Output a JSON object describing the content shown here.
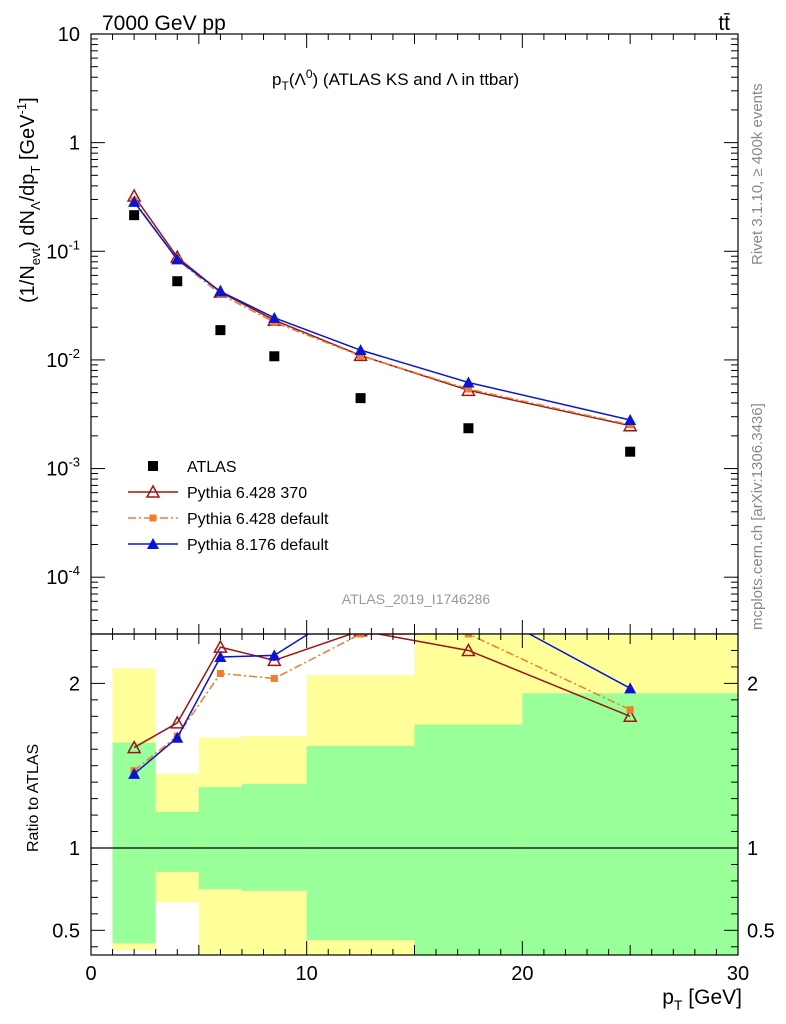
{
  "header": {
    "left": "7000 GeV pp",
    "right": "tt̄"
  },
  "side_labels": {
    "rivet": "Rivet 3.1.10, ≥ 400k events",
    "mcplots": "mcplots.cern.ch [arXiv:1306.3436]"
  },
  "chart_data": [
    {
      "type": "scatter",
      "title": "p_T(Λ⁰) (ATLAS KS and Λ in ttbar)",
      "title_parts": {
        "p": "p",
        "sub_t": "T",
        "paren_open": "(Λ",
        "sup_0": "0",
        "rest": ") (ATLAS KS and Λ in ttbar)"
      },
      "ylabel": "(1/N_evt) dN_Λ/dp_T [GeV⁻¹]",
      "ylabel_parts": {
        "a": "(1/N",
        "sub_evt": "evt",
        "b": ") dN",
        "sub_lambda": "Λ",
        "c": "/dp",
        "sub_t": "T",
        "d": " [GeV",
        "sup": "-1",
        "e": "]"
      },
      "y_scale": "log",
      "ylim": [
        3e-05,
        10
      ],
      "xlim": [
        0,
        30
      ],
      "y_tick_labels": [
        {
          "base": "10",
          "exp": "-4",
          "value": 0.0001
        },
        {
          "base": "10",
          "exp": "-3",
          "value": 0.001
        },
        {
          "base": "10",
          "exp": "-2",
          "value": 0.01
        },
        {
          "base": "10",
          "exp": "-1",
          "value": 0.1
        },
        {
          "base": "1",
          "exp": "",
          "value": 1
        },
        {
          "base": "10",
          "exp": "",
          "value": 10
        }
      ],
      "watermark": "ATLAS_2019_I1746286",
      "legend_position": "bottom-left",
      "series": [
        {
          "name": "ATLAS",
          "color": "#000000",
          "marker": "square",
          "x": [
            2,
            4,
            6,
            8.5,
            12.5,
            17.5,
            25
          ],
          "y": [
            0.215,
            0.053,
            0.0188,
            0.0108,
            0.00445,
            0.00235,
            0.00143
          ]
        },
        {
          "name": "Pythia 6.428 370",
          "color": "#9c1616",
          "marker": "open-triangle",
          "line": "solid",
          "x": [
            2,
            4,
            6,
            8.5,
            12.5,
            17.5,
            25
          ],
          "y": [
            0.323,
            0.0883,
            0.0421,
            0.0232,
            0.011,
            0.00525,
            0.00248
          ]
        },
        {
          "name": "Pythia 6.428 default",
          "color": "#f47b28",
          "marker": "square-small",
          "line": "dashdot",
          "x": [
            2,
            4,
            6,
            8.5,
            12.5,
            17.5,
            25
          ],
          "y": [
            0.292,
            0.0839,
            0.0402,
            0.0222,
            0.0109,
            0.0054,
            0.00253
          ]
        },
        {
          "name": "Pythia 8.176 default",
          "color": "#0a14d8",
          "marker": "triangle",
          "line": "solid",
          "x": [
            2,
            4,
            6,
            8.5,
            12.5,
            17.5,
            25
          ],
          "y": [
            0.285,
            0.0842,
            0.0427,
            0.0244,
            0.0123,
            0.0062,
            0.0028
          ]
        }
      ]
    },
    {
      "type": "line",
      "ylabel": "Ratio to ATLAS",
      "xlabel": "p_T [GeV]",
      "xlabel_parts": {
        "p": "p",
        "sub_t": "T",
        "unit": " [GeV]"
      },
      "xlim": [
        0,
        30
      ],
      "ylim": [
        0.35,
        2.3
      ],
      "x_tick_labels": [
        "0",
        "10",
        "20",
        "30"
      ],
      "y_tick_labels": [
        "0.5",
        "1",
        "2"
      ],
      "y_tick_values": [
        0.5,
        1,
        2
      ],
      "reference_line": 1,
      "bands": [
        {
          "x": [
            1,
            3
          ],
          "green": [
            0.42,
            1.64
          ],
          "yellow": [
            0.38,
            2.09
          ]
        },
        {
          "x": [
            3,
            5
          ],
          "green": [
            0.855,
            1.22
          ],
          "yellow": [
            0.67,
            1.45
          ]
        },
        {
          "x": [
            5,
            7
          ],
          "green": [
            0.75,
            1.37
          ],
          "yellow": [
            0.35,
            1.67
          ]
        },
        {
          "x": [
            7,
            10
          ],
          "green": [
            0.74,
            1.39
          ],
          "yellow": [
            0.35,
            1.68
          ]
        },
        {
          "x": [
            10,
            15
          ],
          "green": [
            0.44,
            1.62
          ],
          "yellow": [
            0.35,
            2.05
          ]
        },
        {
          "x": [
            15,
            20
          ],
          "green": [
            0.35,
            1.75
          ],
          "yellow": [
            0.35,
            2.3
          ]
        },
        {
          "x": [
            20,
            30
          ],
          "green": [
            0.35,
            1.94
          ],
          "yellow": [
            0.35,
            2.3
          ]
        }
      ],
      "series": [
        {
          "name": "Pythia 6.428 370",
          "color": "#9c1616",
          "marker": "open-triangle",
          "line": "solid",
          "x": [
            2,
            4,
            6,
            8.5,
            12.5,
            17.5,
            25
          ],
          "y": [
            1.61,
            1.76,
            2.22,
            2.14,
            2.32,
            2.2,
            1.8
          ]
        },
        {
          "name": "Pythia 6.428 default",
          "color": "#f47b28",
          "marker": "square-small",
          "line": "dashdot",
          "x": [
            2,
            4,
            6,
            8.5,
            12.5,
            17.5,
            25
          ],
          "y": [
            1.47,
            1.68,
            2.06,
            2.03,
            2.3,
            2.3,
            1.84
          ]
        },
        {
          "name": "Pythia 8.176 default",
          "color": "#0a14d8",
          "marker": "triangle",
          "line": "solid",
          "x": [
            2,
            4,
            6,
            8.5,
            12.5,
            17.5,
            25
          ],
          "y": [
            1.45,
            1.67,
            2.16,
            2.17,
            2.5,
            2.5,
            1.97
          ]
        }
      ]
    }
  ]
}
